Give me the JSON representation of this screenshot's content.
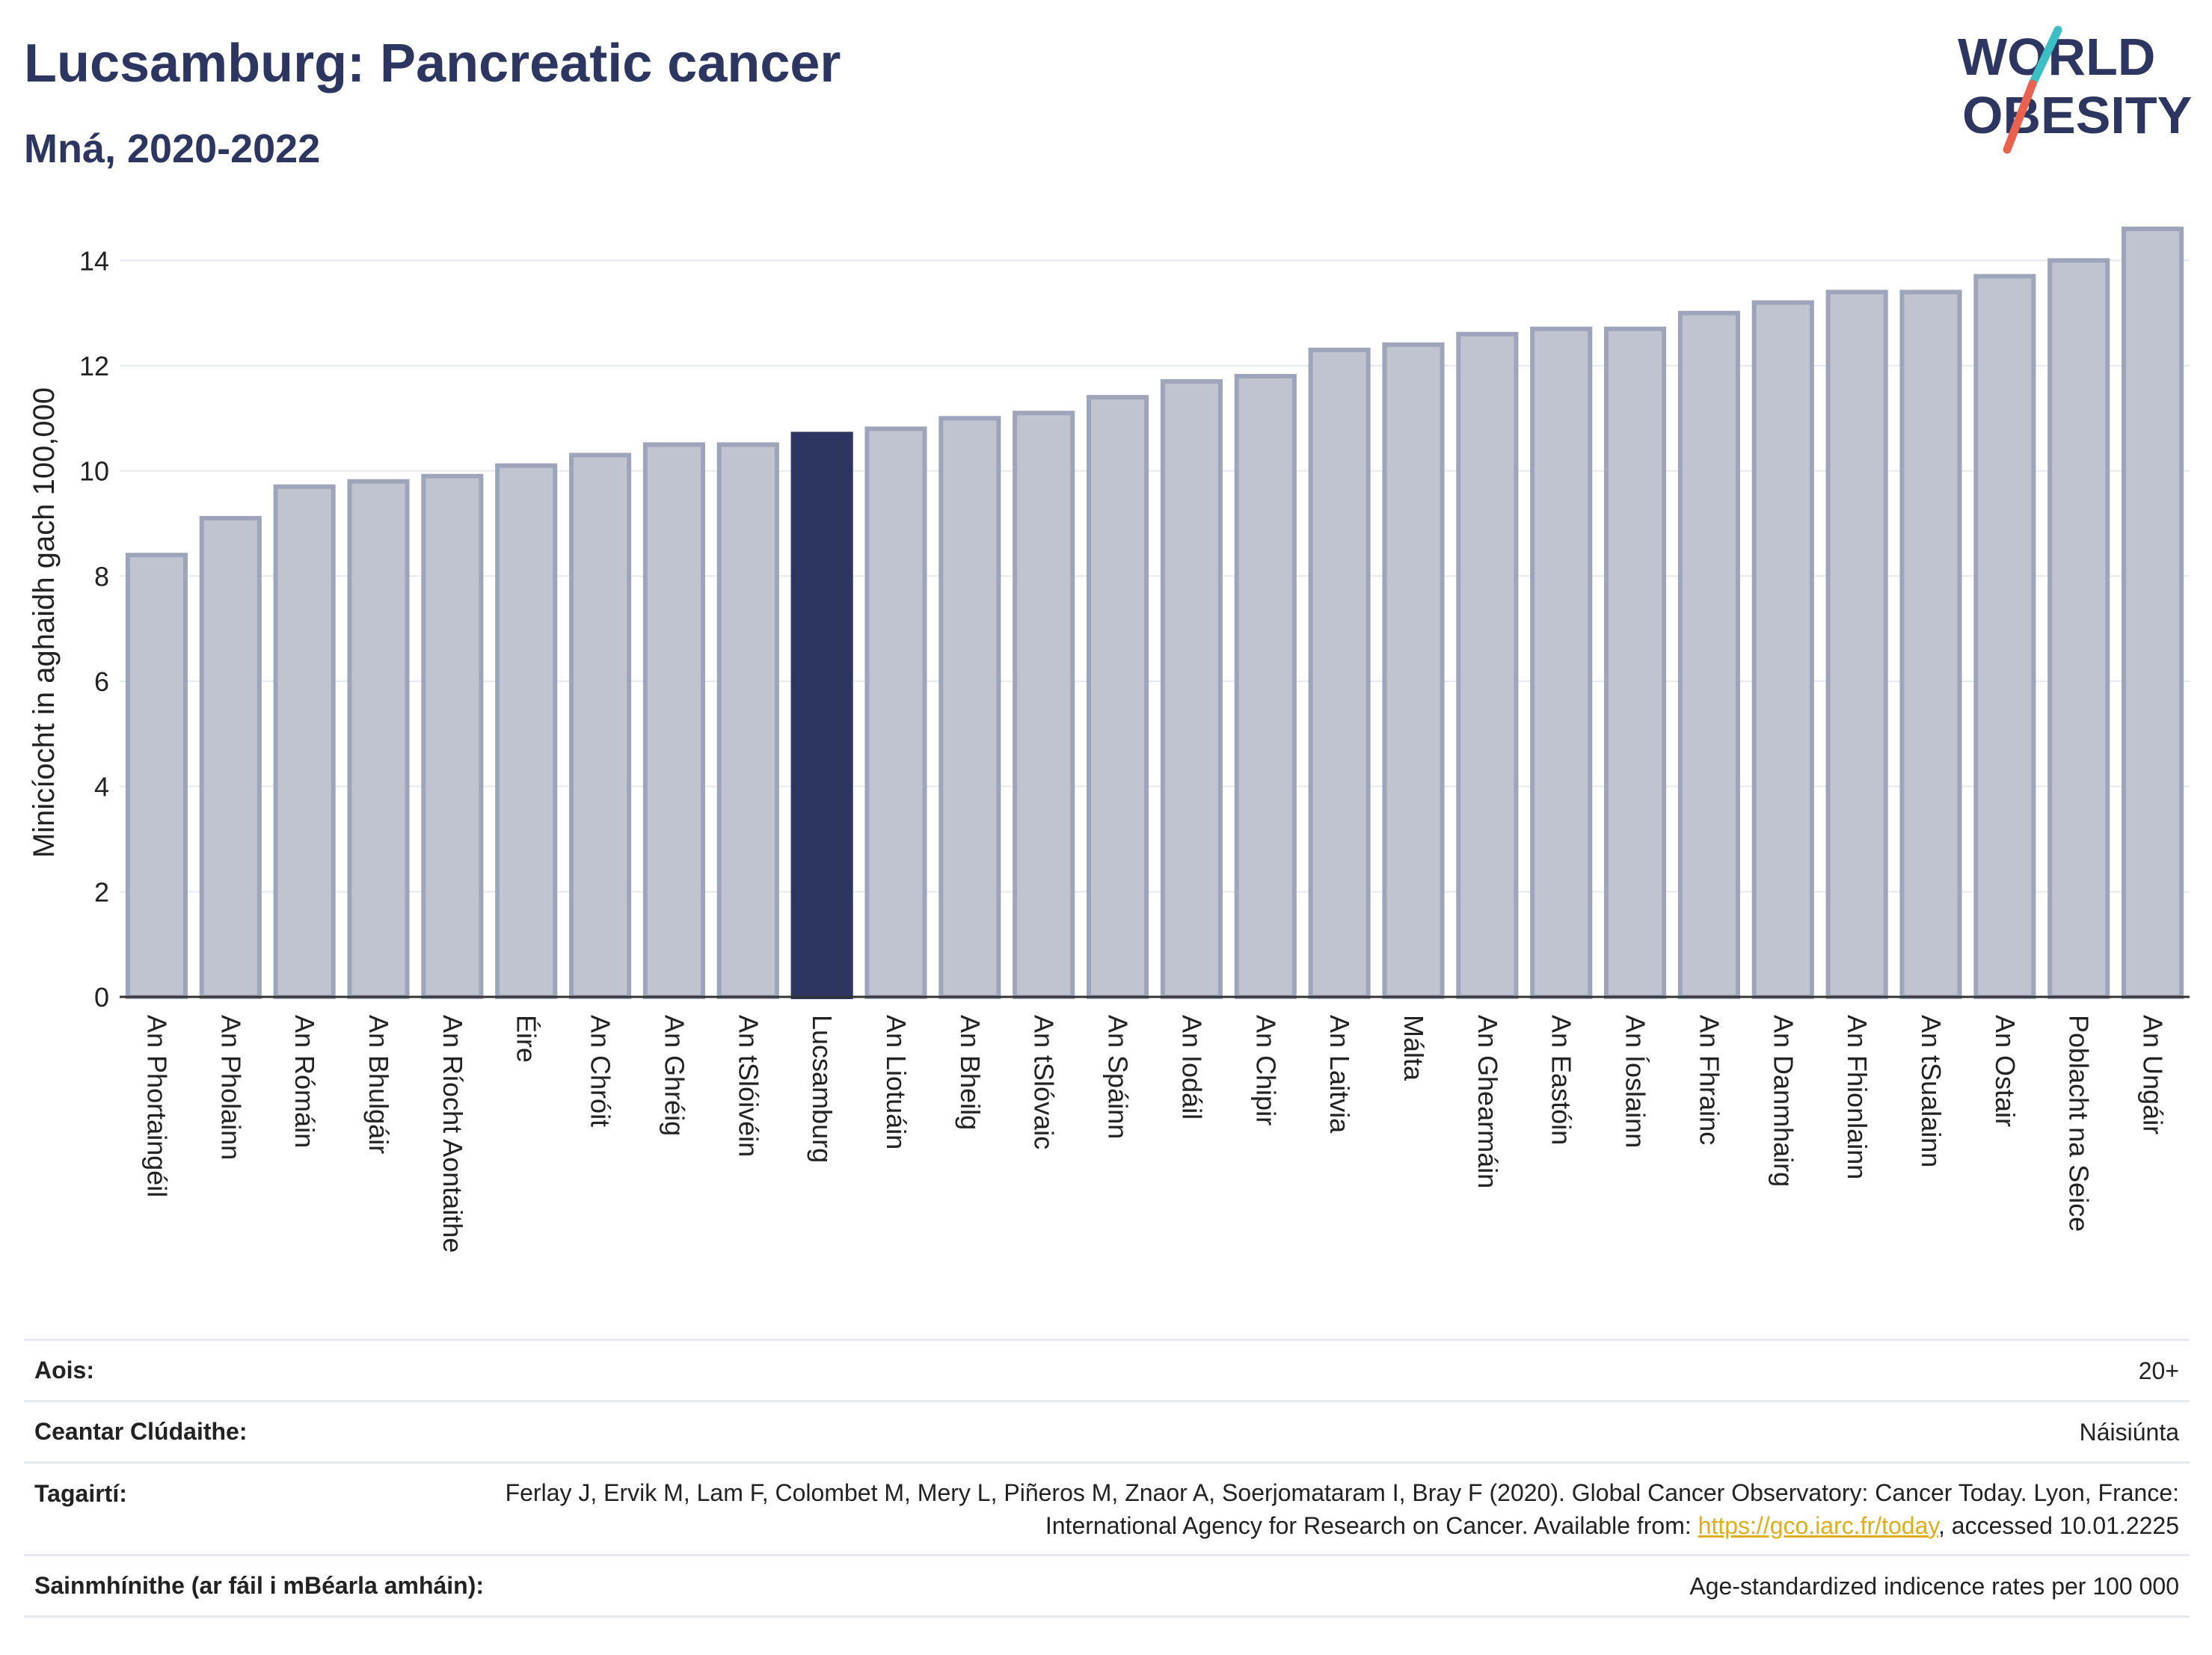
{
  "header": {
    "title": "Lucsamburg: Pancreatic cancer",
    "subtitle": "Mná, 2020-2022"
  },
  "logo": {
    "line1": "WORLD",
    "line2": "OBESITY",
    "slash_colors": [
      "#3bbfc4",
      "#e8624f"
    ]
  },
  "colors": {
    "bar_fill": "#c0c4d1",
    "bar_stroke": "#9ea4ba",
    "highlight": "#2d3561",
    "grid": "#e6e9ee",
    "axis": "#333333"
  },
  "chart_data": {
    "type": "bar",
    "ylabel": "Minicíocht in aghaidh gach 100,000",
    "ylim": [
      0,
      14.8
    ],
    "yticks": [
      0,
      2,
      4,
      6,
      8,
      10,
      12,
      14
    ],
    "grid": true,
    "highlight": "Lucsamburg",
    "categories": [
      "An Phortaingéil",
      "An Pholainn",
      "An Rómáin",
      "An Bhulgáir",
      "An Ríocht Aontaithe",
      "Éire",
      "An Chróit",
      "An Ghréig",
      "An tSlóivéin",
      "Lucsamburg",
      "An Liotuáin",
      "An Bheilg",
      "An tSlóvaic",
      "An Spáinn",
      "An Iodáil",
      "An Chipir",
      "An Laitvia",
      "Málta",
      "An Ghearmáin",
      "An Eastóin",
      "An Íoslainn",
      "An Fhrainc",
      "An Danmhairg",
      "An Fhionlainn",
      "An tSualainn",
      "An Ostair",
      "Poblacht na Seice",
      "An Ungáir"
    ],
    "values": [
      8.4,
      9.1,
      9.7,
      9.8,
      9.9,
      10.1,
      10.3,
      10.5,
      10.5,
      10.7,
      10.8,
      11.0,
      11.1,
      11.4,
      11.7,
      11.8,
      12.3,
      12.4,
      12.6,
      12.7,
      12.7,
      13.0,
      13.2,
      13.4,
      13.4,
      13.7,
      14.0,
      14.6
    ]
  },
  "meta": {
    "rows": [
      {
        "key": "Aois:",
        "value": "20+"
      },
      {
        "key": "Ceantar Clúdaithe:",
        "value": "Náisiúnta"
      },
      {
        "key": "Tagairtí:",
        "value_pre": "Ferlay J, Ervik M, Lam F, Colombet M, Mery L, Piñeros M, Znaor A, Soerjomataram I, Bray F (2020). Global Cancer Observatory: Cancer Today. Lyon, France: International Agency for Research on Cancer. Available from: ",
        "link": "https://gco.iarc.fr/today",
        "value_post": ", accessed 10.01.2225"
      },
      {
        "key": "Sainmhínithe (ar fáil i mBéarla amháin):",
        "value": "Age-standardized indicence rates per 100 000"
      }
    ]
  }
}
